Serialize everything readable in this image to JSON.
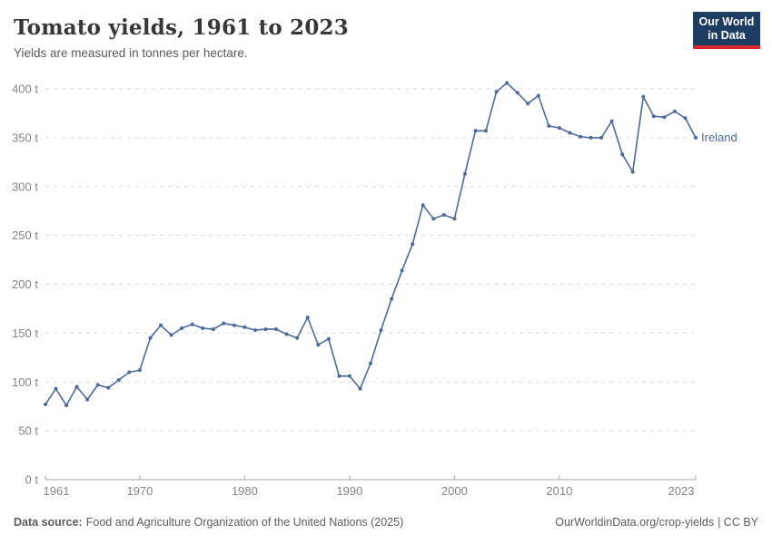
{
  "header": {
    "title": "Tomato yields, 1961 to 2023",
    "subtitle": "Yields are measured in tonnes per hectare.",
    "logo_line1": "Our World",
    "logo_line2": "in Data"
  },
  "colors": {
    "line": "#4c6a9c",
    "grid": "#d9d9d9",
    "axis": "#a5a5a5",
    "tick_label": "#848484",
    "title_text": "#383636",
    "subtitle_text": "#5b5b5b",
    "footer_text": "#5b5b5b",
    "logo_bg": "#1d3d63",
    "logo_accent": "#d8292f"
  },
  "chart_data": {
    "type": "line",
    "title": "Tomato yields, 1961 to 2023",
    "subtitle": "Yields are measured in tonnes per hectare.",
    "unit": "tonnes per hectare",
    "xlim": [
      1961,
      2023
    ],
    "ylim": [
      0,
      400
    ],
    "x_ticks": [
      1961,
      1970,
      1980,
      1990,
      2000,
      2010,
      2023
    ],
    "y_ticks": [
      0,
      50,
      100,
      150,
      200,
      250,
      300,
      350,
      400
    ],
    "y_tick_suffix": " t",
    "grid": true,
    "legend": "end-of-line-label",
    "series": [
      {
        "name": "Ireland",
        "color": "#4c6a9c",
        "years": [
          1961,
          1962,
          1963,
          1964,
          1965,
          1966,
          1967,
          1968,
          1969,
          1970,
          1971,
          1972,
          1973,
          1974,
          1975,
          1976,
          1977,
          1978,
          1979,
          1980,
          1981,
          1982,
          1983,
          1984,
          1985,
          1986,
          1987,
          1988,
          1989,
          1990,
          1991,
          1992,
          1993,
          1994,
          1995,
          1996,
          1997,
          1998,
          1999,
          2000,
          2001,
          2002,
          2003,
          2004,
          2005,
          2006,
          2007,
          2008,
          2009,
          2010,
          2011,
          2012,
          2013,
          2014,
          2015,
          2016,
          2017,
          2018,
          2019,
          2020,
          2021,
          2022,
          2023
        ],
        "values": [
          77,
          93,
          76,
          95,
          82,
          97,
          94,
          102,
          110,
          112,
          145,
          158,
          148,
          155,
          159,
          155,
          154,
          160,
          158,
          156,
          153,
          154,
          154,
          149,
          145,
          166,
          138,
          144,
          106,
          106,
          93,
          119,
          153,
          185,
          214,
          241,
          281,
          267,
          271,
          267,
          313,
          357,
          357,
          397,
          406,
          396,
          385,
          393,
          362,
          360,
          355,
          351,
          350,
          350,
          367,
          333,
          315,
          392,
          372,
          371,
          377,
          370,
          350
        ]
      }
    ]
  },
  "footer": {
    "source_label": "Data source:",
    "source_text": "Food and Agriculture Organization of the United Nations (2025)",
    "credit_link": "OurWorldinData.org/crop-yields",
    "credit_suffix": "| CC BY"
  }
}
